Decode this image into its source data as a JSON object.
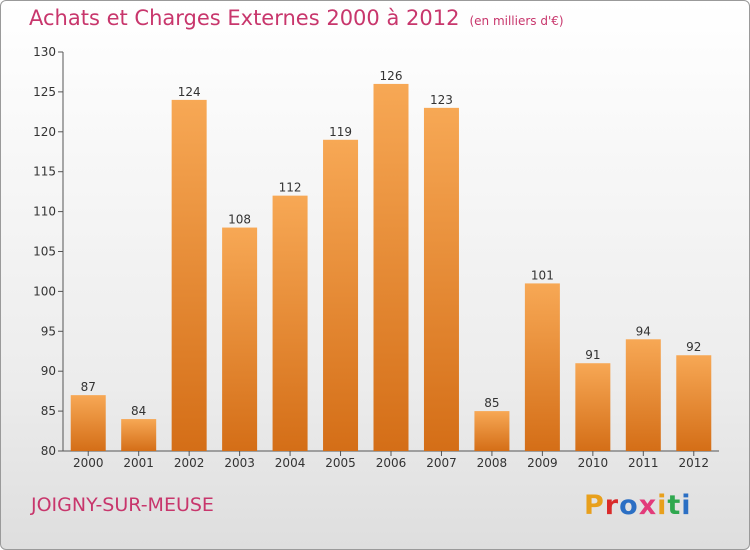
{
  "header": {
    "title": "Achats et Charges Externes 2000 à 2012",
    "subtitle": "(en milliers d'€)"
  },
  "footer": {
    "commune": "JOIGNY-SUR-MEUSE",
    "logo": "Proxiti",
    "logo_colors": [
      "#e8a01c",
      "#d92a2a",
      "#2b6fc4",
      "#e23b7a",
      "#e8a01c",
      "#2fa84f",
      "#2b6fc4"
    ]
  },
  "colors": {
    "bar_top": "#f7a855",
    "bar_bottom": "#d46e17",
    "title": "#c8366c"
  },
  "chart_data": {
    "type": "bar",
    "categories": [
      "2000",
      "2001",
      "2002",
      "2003",
      "2004",
      "2005",
      "2006",
      "2007",
      "2008",
      "2009",
      "2010",
      "2011",
      "2012"
    ],
    "values": [
      87,
      84,
      124,
      108,
      112,
      119,
      126,
      123,
      85,
      101,
      91,
      94,
      92
    ],
    "title": "Achats et Charges Externes 2000 à 2012",
    "xlabel": "",
    "ylabel": "",
    "ylim": [
      80,
      130
    ],
    "yticks": [
      80,
      85,
      90,
      95,
      100,
      105,
      110,
      115,
      120,
      125,
      130
    ],
    "grid": false,
    "data_labels": true
  }
}
